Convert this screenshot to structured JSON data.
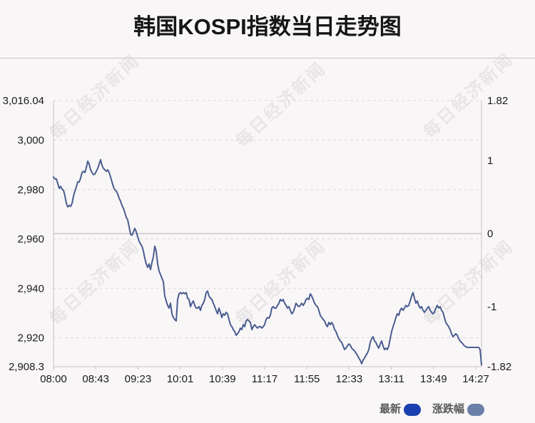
{
  "watermark": "每日经济新闻",
  "colors": {
    "background": "#f9f6f8",
    "line": "#4a5d8f",
    "zero_line": "#c9c6c8",
    "grid": "#dcd9db",
    "axis": "#c4c1c3"
  },
  "chart_data": {
    "type": "line",
    "title": "韩国KOSPI指数当日走势图",
    "grid": true,
    "legend_position": "bottom-right",
    "legend": [
      {
        "label": "最新",
        "color": "#1a3fae"
      },
      {
        "label": "涨跌幅",
        "color": "#6b80a9"
      }
    ],
    "ylim": [
      2908.3,
      3016.04
    ],
    "y2lim": [
      -1.82,
      1.82
    ],
    "y_left_ticks": [
      {
        "value": 3016.04,
        "label": "3,016.04"
      },
      {
        "value": 3000,
        "label": "3,000"
      },
      {
        "value": 2980,
        "label": "2,980"
      },
      {
        "value": 2960,
        "label": "2,960"
      },
      {
        "value": 2940,
        "label": "2,940"
      },
      {
        "value": 2920,
        "label": "2,920"
      },
      {
        "value": 2908.3,
        "label": "2,908.3"
      }
    ],
    "y_right_ticks": [
      {
        "value": 1.82,
        "label": "1.82"
      },
      {
        "value": 1,
        "label": "1"
      },
      {
        "value": 0,
        "label": "0"
      },
      {
        "value": -1,
        "label": "-1"
      },
      {
        "value": -1.82,
        "label": "-1.82"
      }
    ],
    "x_tick_labels": [
      "08:00",
      "08:43",
      "09:23",
      "10:01",
      "10:39",
      "11:17",
      "11:55",
      "12:33",
      "13:11",
      "13:49",
      "14:27"
    ],
    "series": [
      {
        "name": "最新",
        "values": [
          2985.1,
          2984.3,
          2984.3,
          2982.5,
          2980.5,
          2981.3,
          2980.2,
          2979.7,
          2977.5,
          2974.4,
          2973.0,
          2973.6,
          2973.2,
          2974.4,
          2977.3,
          2979.4,
          2981.1,
          2983.1,
          2983.1,
          2984.6,
          2986.9,
          2987.4,
          2986.9,
          2988.9,
          2991.5,
          2990.3,
          2988.0,
          2986.9,
          2986.0,
          2986.3,
          2987.4,
          2988.6,
          2990.3,
          2992.1,
          2989.8,
          2988.6,
          2988.0,
          2987.4,
          2988.0,
          2986.9,
          2985.1,
          2983.1,
          2981.1,
          2979.9,
          2979.4,
          2978.2,
          2976.5,
          2975.3,
          2973.6,
          2972.4,
          2970.7,
          2968.7,
          2967.8,
          2964.9,
          2962.0,
          2961.5,
          2962.9,
          2964.3,
          2962.9,
          2960.9,
          2959.1,
          2958.0,
          2957.1,
          2955.1,
          2952.2,
          2949.9,
          2948.5,
          2949.9,
          2947.6,
          2950.5,
          2952.8,
          2957.1,
          2955.1,
          2949.9,
          2947.0,
          2945.6,
          2944.1,
          2942.7,
          2936.9,
          2934.9,
          2933.1,
          2932.0,
          2934.0,
          2929.7,
          2928.2,
          2927.4,
          2926.8,
          2935.5,
          2937.8,
          2938.3,
          2937.8,
          2938.3,
          2937.8,
          2938.3,
          2936.0,
          2935.5,
          2932.6,
          2934.0,
          2934.9,
          2933.1,
          2932.0,
          2932.0,
          2932.6,
          2931.1,
          2933.1,
          2934.0,
          2935.5,
          2938.3,
          2938.9,
          2936.9,
          2936.0,
          2935.5,
          2934.0,
          2932.6,
          2931.1,
          2929.7,
          2932.0,
          2930.3,
          2928.2,
          2929.7,
          2929.1,
          2930.3,
          2929.7,
          2927.4,
          2925.3,
          2924.5,
          2923.3,
          2922.5,
          2921.0,
          2921.6,
          2922.5,
          2923.9,
          2923.3,
          2925.3,
          2924.5,
          2926.8,
          2927.4,
          2926.8,
          2926.2,
          2923.3,
          2924.5,
          2925.3,
          2924.5,
          2923.9,
          2924.5,
          2924.5,
          2923.9,
          2924.5,
          2925.3,
          2927.4,
          2928.2,
          2927.9,
          2929.1,
          2932.0,
          2932.6,
          2932.0,
          2932.0,
          2933.1,
          2934.0,
          2935.5,
          2934.9,
          2935.5,
          2934.0,
          2933.1,
          2932.0,
          2932.6,
          2931.1,
          2929.7,
          2930.3,
          2932.0,
          2934.0,
          2933.1,
          2932.6,
          2933.1,
          2934.0,
          2933.1,
          2934.0,
          2935.5,
          2936.0,
          2935.5,
          2937.8,
          2936.9,
          2935.5,
          2934.0,
          2933.1,
          2932.6,
          2931.1,
          2929.1,
          2928.2,
          2927.4,
          2926.8,
          2925.3,
          2924.5,
          2926.2,
          2925.3,
          2926.2,
          2925.3,
          2923.3,
          2922.5,
          2921.0,
          2919.6,
          2918.7,
          2918.1,
          2916.7,
          2915.2,
          2915.8,
          2916.7,
          2917.5,
          2917.0,
          2915.8,
          2915.2,
          2914.7,
          2913.8,
          2912.9,
          2911.8,
          2910.9,
          2909.5,
          2910.9,
          2911.8,
          2912.9,
          2913.8,
          2915.2,
          2918.1,
          2919.6,
          2920.4,
          2918.7,
          2918.1,
          2916.7,
          2915.8,
          2917.5,
          2918.7,
          2916.7,
          2915.2,
          2915.8,
          2915.2,
          2916.7,
          2919.6,
          2922.5,
          2924.5,
          2926.2,
          2928.2,
          2929.7,
          2929.1,
          2931.1,
          2932.0,
          2931.1,
          2932.0,
          2933.1,
          2932.6,
          2933.1,
          2934.9,
          2936.9,
          2938.3,
          2936.0,
          2934.0,
          2934.9,
          2933.1,
          2932.0,
          2932.6,
          2931.1,
          2930.3,
          2931.1,
          2932.0,
          2932.6,
          2931.1,
          2930.3,
          2929.7,
          2930.3,
          2932.0,
          2933.1,
          2932.0,
          2932.6,
          2931.1,
          2930.3,
          2928.2,
          2926.2,
          2925.3,
          2924.5,
          2923.3,
          2921.6,
          2920.4,
          2921.0,
          2921.6,
          2921.0,
          2919.6,
          2918.7,
          2918.1,
          2917.5,
          2916.7,
          2916.4,
          2916.1,
          2916.1,
          2916.1,
          2916.1,
          2916.1,
          2916.1,
          2916.1,
          2916.1,
          2916.1,
          2915.2,
          2909.0
        ]
      }
    ]
  }
}
